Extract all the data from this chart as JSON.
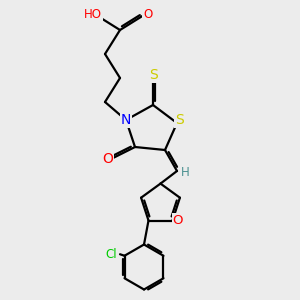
{
  "background_color": "#ececec",
  "atom_colors": {
    "C": "#000000",
    "H": "#4a9090",
    "O": "#ff0000",
    "N": "#0000ff",
    "S": "#cccc00",
    "Cl": "#00cc00"
  },
  "bond_color": "#000000",
  "bond_width": 1.6,
  "font_size": 8.5,
  "fig_width": 3.0,
  "fig_height": 3.0,
  "dpi": 100,
  "xlim": [
    0,
    10
  ],
  "ylim": [
    0,
    10
  ]
}
